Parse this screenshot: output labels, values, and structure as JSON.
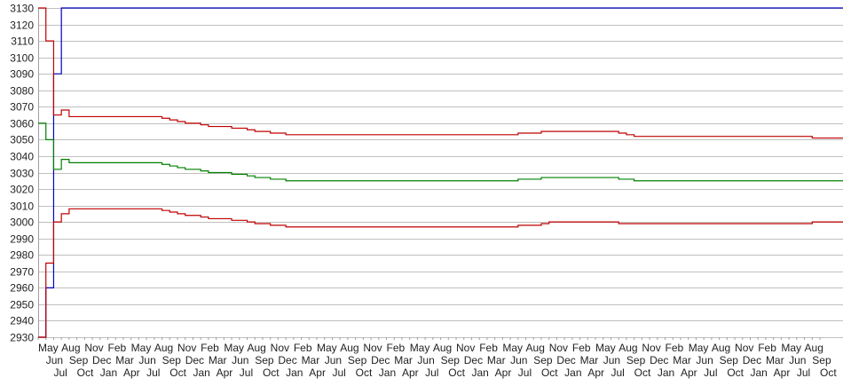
{
  "chart_data": {
    "type": "line",
    "title": "",
    "xlabel": "",
    "ylabel": "",
    "ylim": [
      2930,
      3130
    ],
    "yticks": [
      2930,
      2940,
      2950,
      2960,
      2970,
      2980,
      2990,
      3000,
      3010,
      3020,
      3030,
      3040,
      3050,
      3060,
      3070,
      3080,
      3090,
      3100,
      3110,
      3120,
      3130
    ],
    "grid": true,
    "legend": "none",
    "categories": [
      "May",
      "Jun",
      "Jul",
      "Aug",
      "Sep",
      "Oct",
      "Nov",
      "Dec",
      "Jan",
      "Feb",
      "Mar",
      "Apr",
      "May",
      "Jun",
      "Jul",
      "Aug",
      "Sep",
      "Oct",
      "Nov",
      "Dec",
      "Jan",
      "Feb",
      "Mar",
      "Apr",
      "May",
      "Jun",
      "Jul",
      "Aug",
      "Sep",
      "Oct",
      "Nov",
      "Dec",
      "Jan",
      "Feb",
      "Mar",
      "Apr",
      "May",
      "Jun",
      "Jul",
      "Aug",
      "Sep",
      "Oct",
      "Nov",
      "Dec",
      "Jan",
      "Feb",
      "Mar",
      "Apr",
      "May",
      "Jun",
      "Jul",
      "Aug",
      "Sep",
      "Oct",
      "Nov",
      "Dec",
      "Jan",
      "Feb",
      "Mar",
      "Apr",
      "May",
      "Jun",
      "Jul",
      "Aug",
      "Sep",
      "Oct",
      "Nov",
      "Dec",
      "Jan",
      "Feb",
      "Mar",
      "Apr",
      "May",
      "Jun",
      "Jul",
      "Aug",
      "Sep",
      "Oct",
      "Nov",
      "Dec",
      "Jan",
      "Feb",
      "Mar",
      "Apr",
      "May",
      "Jun",
      "Jul",
      "Aug",
      "Sep",
      "Oct",
      "Nov",
      "Dec",
      "Jan",
      "Feb",
      "Mar",
      "Apr",
      "May",
      "Jun",
      "Jul",
      "Aug",
      "Sep",
      "Oct"
    ],
    "series": [
      {
        "color": "#0000c0",
        "values": [
          2930,
          2960,
          3090,
          3130,
          3130,
          3130,
          3130,
          3130,
          3130,
          3130,
          3130,
          3130,
          3130,
          3130,
          3130,
          3130,
          3130,
          3130,
          3130,
          3130,
          3130,
          3130,
          3130,
          3130,
          3130,
          3130,
          3130,
          3130,
          3130,
          3130,
          3130,
          3130,
          3130,
          3130,
          3130,
          3130,
          3130,
          3130,
          3130,
          3130,
          3130,
          3130,
          3130,
          3130,
          3130,
          3130,
          3130,
          3130,
          3130,
          3130,
          3130,
          3130,
          3130,
          3130,
          3130,
          3130,
          3130,
          3130,
          3130,
          3130,
          3130,
          3130,
          3130,
          3130,
          3130,
          3130,
          3130,
          3130,
          3130,
          3130,
          3130,
          3130,
          3130,
          3130,
          3130,
          3130,
          3130,
          3130,
          3130,
          3130,
          3130,
          3130,
          3130,
          3130,
          3130,
          3130,
          3130,
          3130,
          3130,
          3130,
          3130,
          3130,
          3130,
          3130,
          3130,
          3130,
          3130,
          3130,
          3130,
          3130,
          3130,
          3130
        ]
      },
      {
        "color": "#c00000",
        "values": [
          3130,
          3110,
          3065,
          3068,
          3064,
          3064,
          3064,
          3064,
          3064,
          3064,
          3064,
          3064,
          3064,
          3064,
          3064,
          3064,
          3063,
          3062,
          3061,
          3060,
          3060,
          3059,
          3058,
          3058,
          3058,
          3057,
          3057,
          3056,
          3055,
          3055,
          3054,
          3054,
          3053,
          3053,
          3053,
          3053,
          3053,
          3053,
          3053,
          3053,
          3053,
          3053,
          3053,
          3053,
          3053,
          3053,
          3053,
          3053,
          3053,
          3053,
          3053,
          3053,
          3053,
          3053,
          3053,
          3053,
          3053,
          3053,
          3053,
          3053,
          3053,
          3053,
          3054,
          3054,
          3054,
          3055,
          3055,
          3055,
          3055,
          3055,
          3055,
          3055,
          3055,
          3055,
          3055,
          3054,
          3053,
          3052,
          3052,
          3052,
          3052,
          3052,
          3052,
          3052,
          3052,
          3052,
          3052,
          3052,
          3052,
          3052,
          3052,
          3052,
          3052,
          3052,
          3052,
          3052,
          3052,
          3052,
          3052,
          3052,
          3051,
          3051
        ]
      },
      {
        "color": "#008000",
        "values": [
          3060,
          3050,
          3032,
          3038,
          3036,
          3036,
          3036,
          3036,
          3036,
          3036,
          3036,
          3036,
          3036,
          3036,
          3036,
          3036,
          3035,
          3034,
          3033,
          3032,
          3032,
          3031,
          3030,
          3030,
          3030,
          3029,
          3029,
          3028,
          3027,
          3027,
          3026,
          3026,
          3025,
          3025,
          3025,
          3025,
          3025,
          3025,
          3025,
          3025,
          3025,
          3025,
          3025,
          3025,
          3025,
          3025,
          3025,
          3025,
          3025,
          3025,
          3025,
          3025,
          3025,
          3025,
          3025,
          3025,
          3025,
          3025,
          3025,
          3025,
          3025,
          3025,
          3026,
          3026,
          3026,
          3027,
          3027,
          3027,
          3027,
          3027,
          3027,
          3027,
          3027,
          3027,
          3027,
          3026,
          3026,
          3025,
          3025,
          3025,
          3025,
          3025,
          3025,
          3025,
          3025,
          3025,
          3025,
          3025,
          3025,
          3025,
          3025,
          3025,
          3025,
          3025,
          3025,
          3025,
          3025,
          3025,
          3025,
          3025,
          3025,
          3025
        ]
      },
      {
        "color": "#c00000",
        "values": [
          2930,
          2975,
          3000,
          3005,
          3008,
          3008,
          3008,
          3008,
          3008,
          3008,
          3008,
          3008,
          3008,
          3008,
          3008,
          3008,
          3007,
          3006,
          3005,
          3004,
          3004,
          3003,
          3002,
          3002,
          3002,
          3001,
          3001,
          3000,
          2999,
          2999,
          2998,
          2998,
          2997,
          2997,
          2997,
          2997,
          2997,
          2997,
          2997,
          2997,
          2997,
          2997,
          2997,
          2997,
          2997,
          2997,
          2997,
          2997,
          2997,
          2997,
          2997,
          2997,
          2997,
          2997,
          2997,
          2997,
          2997,
          2997,
          2997,
          2997,
          2997,
          2997,
          2998,
          2998,
          2998,
          2999,
          3000,
          3000,
          3000,
          3000,
          3000,
          3000,
          3000,
          3000,
          3000,
          2999,
          2999,
          2999,
          2999,
          2999,
          2999,
          2999,
          2999,
          2999,
          2999,
          2999,
          2999,
          2999,
          2999,
          2999,
          2999,
          2999,
          2999,
          2999,
          2999,
          2999,
          2999,
          2999,
          2999,
          2999,
          3000,
          3000
        ]
      }
    ]
  }
}
